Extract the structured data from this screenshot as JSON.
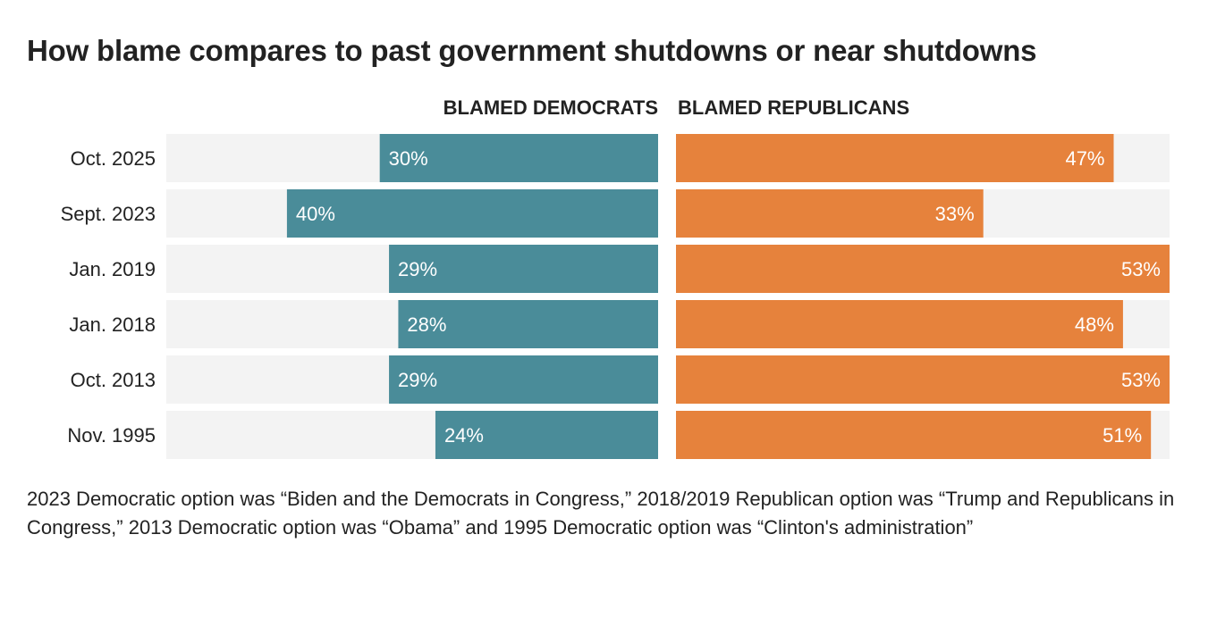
{
  "chart_data": {
    "type": "bar",
    "title": "How blame compares to past government shutdowns or near shutdowns",
    "categories": [
      "Oct. 2025",
      "Sept. 2023",
      "Jan. 2019",
      "Jan. 2018",
      "Oct. 2013",
      "Nov. 1995"
    ],
    "series": [
      {
        "name": "BLAMED DEMOCRATS",
        "values": [
          30,
          40,
          29,
          28,
          29,
          24
        ],
        "labels": [
          "30%",
          "40%",
          "29%",
          "28%",
          "29%",
          "24%"
        ],
        "color": "#4a8c99"
      },
      {
        "name": "BLAMED REPUBLICANS",
        "values": [
          47,
          33,
          53,
          48,
          53,
          51
        ],
        "labels": [
          "47%",
          "33%",
          "53%",
          "48%",
          "53%",
          "51%"
        ],
        "color": "#e6823c"
      }
    ],
    "xlim": [
      0,
      53
    ],
    "track_color": "#f3f3f3",
    "xlabel": "",
    "ylabel": "",
    "grid": false
  },
  "note": "2023 Democratic option was “Biden and the Democrats in Congress,” 2018/2019 Republican option was “Trump and Republicans in Congress,” 2013 Democratic option was “Obama” and 1995 Democratic option was “Clinton's administration”"
}
